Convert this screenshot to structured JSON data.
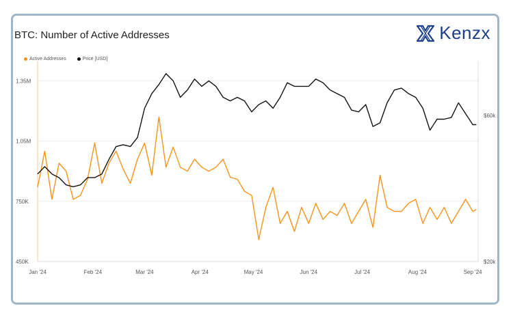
{
  "title": "BTC: Number of Active Addresses",
  "brand": {
    "name": "Kenzx",
    "color": "#1b3f8b"
  },
  "colors": {
    "active": "#f7931a",
    "price": "#111111",
    "border": "#9fb6c9"
  },
  "chart_data": {
    "type": "line",
    "title": "BTC: Number of Active Addresses",
    "legend": [
      "Active Addresses",
      "Price [USD]"
    ],
    "legend_position": "top-left",
    "grid": true,
    "x_ticks": [
      "Jan '24",
      "Feb '24",
      "Mar '24",
      "Apr '24",
      "May '24",
      "Jun '24",
      "Jul '24",
      "Aug '24",
      "Sep '24"
    ],
    "y_left_ticks": [
      "1.35M",
      "1.05M",
      "750K",
      "450K"
    ],
    "y_left_range": [
      450000,
      1450000
    ],
    "y_right_ticks": [
      "$60k",
      "$20k"
    ],
    "y_right_range": [
      20000,
      75000
    ],
    "series": [
      {
        "name": "Active Addresses",
        "axis": "left",
        "color": "#f7931a",
        "x": [
          "2024-01-01",
          "2024-01-05",
          "2024-01-09",
          "2024-01-13",
          "2024-01-17",
          "2024-01-21",
          "2024-01-25",
          "2024-01-29",
          "2024-02-02",
          "2024-02-06",
          "2024-02-10",
          "2024-02-14",
          "2024-02-18",
          "2024-02-22",
          "2024-02-26",
          "2024-03-01",
          "2024-03-05",
          "2024-03-09",
          "2024-03-13",
          "2024-03-17",
          "2024-03-21",
          "2024-03-25",
          "2024-03-29",
          "2024-04-02",
          "2024-04-06",
          "2024-04-10",
          "2024-04-14",
          "2024-04-18",
          "2024-04-22",
          "2024-04-26",
          "2024-04-30",
          "2024-05-04",
          "2024-05-08",
          "2024-05-12",
          "2024-05-16",
          "2024-05-20",
          "2024-05-24",
          "2024-05-28",
          "2024-06-01",
          "2024-06-05",
          "2024-06-09",
          "2024-06-13",
          "2024-06-17",
          "2024-06-21",
          "2024-06-25",
          "2024-06-29",
          "2024-07-03",
          "2024-07-07",
          "2024-07-11",
          "2024-07-15",
          "2024-07-19",
          "2024-07-23",
          "2024-07-27",
          "2024-07-31",
          "2024-08-04",
          "2024-08-08",
          "2024-08-12",
          "2024-08-16",
          "2024-08-20",
          "2024-08-24",
          "2024-08-28",
          "2024-09-01",
          "2024-09-03"
        ],
        "values": [
          820000,
          1000000,
          760000,
          940000,
          900000,
          760000,
          780000,
          860000,
          1040000,
          840000,
          940000,
          1000000,
          910000,
          840000,
          960000,
          1040000,
          880000,
          1170000,
          920000,
          1020000,
          920000,
          900000,
          960000,
          920000,
          900000,
          920000,
          960000,
          870000,
          860000,
          800000,
          780000,
          560000,
          720000,
          820000,
          640000,
          700000,
          600000,
          720000,
          640000,
          740000,
          660000,
          700000,
          680000,
          740000,
          640000,
          700000,
          760000,
          620000,
          880000,
          720000,
          700000,
          700000,
          740000,
          760000,
          640000,
          720000,
          660000,
          720000,
          640000,
          700000,
          760000,
          700000,
          710000
        ]
      },
      {
        "name": "Price [USD]",
        "axis": "right",
        "color": "#111111",
        "x": [
          "2024-01-01",
          "2024-01-05",
          "2024-01-09",
          "2024-01-13",
          "2024-01-17",
          "2024-01-21",
          "2024-01-25",
          "2024-01-29",
          "2024-02-02",
          "2024-02-06",
          "2024-02-10",
          "2024-02-14",
          "2024-02-18",
          "2024-02-22",
          "2024-02-26",
          "2024-03-01",
          "2024-03-05",
          "2024-03-09",
          "2024-03-13",
          "2024-03-17",
          "2024-03-21",
          "2024-03-25",
          "2024-03-29",
          "2024-04-02",
          "2024-04-06",
          "2024-04-10",
          "2024-04-14",
          "2024-04-18",
          "2024-04-22",
          "2024-04-26",
          "2024-04-30",
          "2024-05-04",
          "2024-05-08",
          "2024-05-12",
          "2024-05-16",
          "2024-05-20",
          "2024-05-24",
          "2024-05-28",
          "2024-06-01",
          "2024-06-05",
          "2024-06-09",
          "2024-06-13",
          "2024-06-17",
          "2024-06-21",
          "2024-06-25",
          "2024-06-29",
          "2024-07-03",
          "2024-07-07",
          "2024-07-11",
          "2024-07-15",
          "2024-07-19",
          "2024-07-23",
          "2024-07-27",
          "2024-07-31",
          "2024-08-04",
          "2024-08-08",
          "2024-08-12",
          "2024-08-16",
          "2024-08-20",
          "2024-08-24",
          "2024-08-28",
          "2024-09-01",
          "2024-09-03"
        ],
        "values": [
          44000,
          46000,
          44000,
          43000,
          41000,
          40500,
          41000,
          43000,
          43000,
          44000,
          48000,
          51500,
          52000,
          51500,
          54000,
          62000,
          66000,
          68500,
          71500,
          69500,
          65000,
          67000,
          70000,
          68000,
          69500,
          68000,
          65000,
          64000,
          65000,
          64000,
          61000,
          63000,
          64000,
          62000,
          65000,
          69000,
          68000,
          68000,
          68000,
          70000,
          69000,
          67000,
          66000,
          65000,
          61500,
          61000,
          63000,
          57000,
          58000,
          63500,
          67000,
          67500,
          66000,
          65000,
          62000,
          56000,
          59000,
          59000,
          59500,
          63500,
          60500,
          57500,
          57500
        ]
      }
    ]
  }
}
